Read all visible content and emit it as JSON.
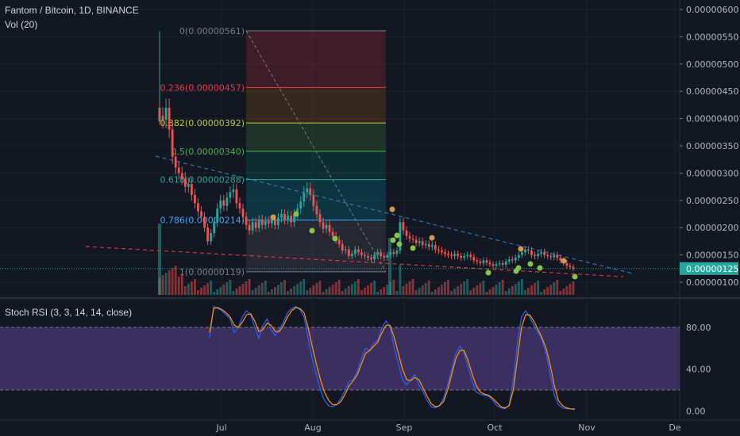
{
  "header": {
    "symbol": "Fantom / Bitcoin, 1D, BINANCE",
    "vol": "Vol (20)",
    "stoch": "Stoch RSI (3, 3, 14, 14, close)"
  },
  "colors": {
    "background": "#131722",
    "up": "#26a69a",
    "down": "#ef5350",
    "price_tag": "#26a69a",
    "trend_blue": "#2f78b5",
    "trend_red": "#d43c3c",
    "stoch_k": "#2962ff",
    "stoch_d": "#ff9800",
    "stoch_band": "#7e57c2"
  },
  "chart_data": [
    {
      "type": "candlestick",
      "title": "Fantom / Bitcoin, 1D, BINANCE",
      "x_ticks": [
        "Jul",
        "Aug",
        "Sep",
        "Oct",
        "Nov",
        "De"
      ],
      "y_ticks": [
        "0.00000600",
        "0.00000550",
        "0.00000500",
        "0.00000450",
        "0.00000400",
        "0.00000350",
        "0.00000300",
        "0.00000250",
        "0.00000200",
        "0.00000150",
        "0.00000100"
      ],
      "ylim": [
        9.5e-07,
        6.2e-06
      ],
      "last_price": "0.00000125",
      "fibonacci": [
        {
          "label": "0(0.00000561)",
          "level": 5.61e-06,
          "color": "#787b86"
        },
        {
          "label": "0.236(0.00000457)",
          "level": 4.57e-06,
          "color": "#f23645"
        },
        {
          "label": "0.382(0.00000392)",
          "level": 3.92e-06,
          "color": "#c0ca33"
        },
        {
          "label": "0.5(0.00000340)",
          "level": 3.4e-06,
          "color": "#4caf50"
        },
        {
          "label": "0.618(0.00000288)",
          "level": 2.88e-06,
          "color": "#26a69a"
        },
        {
          "label": "0.786(0.00000214)",
          "level": 2.14e-06,
          "color": "#42a5f5"
        },
        {
          "label": "1(0.00000119)",
          "level": 1.19e-06,
          "color": "#787b86"
        }
      ],
      "close_series": [
        4.05e-06,
        3.98e-06,
        4.2e-06,
        3.8e-06,
        3.3e-06,
        3.1e-06,
        3e-06,
        2.9e-06,
        2.75e-06,
        2.8e-06,
        2.6e-06,
        2.45e-06,
        2.3e-06,
        2.2e-06,
        2e-06,
        1.75e-06,
        1.9e-06,
        2.1e-06,
        2.35e-06,
        2.5e-06,
        2.4e-06,
        2.55e-06,
        2.65e-06,
        2.7e-06,
        2.45e-06,
        2.35e-06,
        2.2e-06,
        2.05e-06,
        1.95e-06,
        2.1e-06,
        2e-06,
        2.15e-06,
        2.05e-06,
        2.12e-06,
        2.08e-06,
        2.15e-06,
        2.05e-06,
        2.18e-06,
        2.25e-06,
        2.15e-06,
        2.22e-06,
        2.1e-06,
        2.25e-06,
        2.35e-06,
        2.48e-06,
        2.65e-06,
        2.72e-06,
        2.6e-06,
        2.4e-06,
        2.25e-06,
        2.1e-06,
        1.98e-06,
        2.05e-06,
        1.92e-06,
        1.85e-06,
        1.78e-06,
        1.7e-06,
        1.58e-06,
        1.6e-06,
        1.48e-06,
        1.52e-06,
        1.6e-06,
        1.55e-06,
        1.5e-06,
        1.48e-06,
        1.45e-06,
        1.42e-06,
        1.5e-06,
        1.55e-06,
        1.48e-06,
        1.45e-06,
        1.5e-06,
        1.55e-06,
        1.52e-06,
        1.58e-06,
        2.1e-06,
        1.95e-06,
        1.85e-06,
        1.8e-06,
        1.78e-06,
        1.72e-06,
        1.75e-06,
        1.68e-06,
        1.7e-06,
        1.65e-06,
        1.68e-06,
        1.6e-06,
        1.58e-06,
        1.55e-06,
        1.52e-06,
        1.5e-06,
        1.48e-06,
        1.52e-06,
        1.48e-06,
        1.45e-06,
        1.48e-06,
        1.5e-06,
        1.46e-06,
        1.4e-06,
        1.38e-06,
        1.35e-06,
        1.4e-06,
        1.36e-06,
        1.33e-06,
        1.3e-06,
        1.33e-06,
        1.35e-06,
        1.32e-06,
        1.38e-06,
        1.42e-06,
        1.4e-06,
        1.45e-06,
        1.5e-06,
        1.55e-06,
        1.6e-06,
        1.58e-06,
        1.5e-06,
        1.48e-06,
        1.52e-06,
        1.55e-06,
        1.5e-06,
        1.48e-06,
        1.46e-06,
        1.5e-06,
        1.45e-06,
        1.4e-06,
        1.35e-06,
        1.3e-06,
        1.28e-06,
        1.25e-06
      ]
    },
    {
      "type": "line",
      "title": "Stoch RSI (3, 3, 14, 14, close)",
      "y_ticks": [
        "80.00",
        "40.00",
        "0.00"
      ],
      "ylim": [
        -5,
        105
      ],
      "bands": [
        20,
        80
      ],
      "series": [
        {
          "values": [
            70,
            100,
            98,
            96,
            92,
            88,
            75,
            80,
            90,
            96,
            92,
            80,
            70,
            82,
            88,
            78,
            72,
            78,
            85,
            94,
            98,
            100,
            97,
            90,
            70,
            50,
            35,
            20,
            10,
            5,
            4,
            6,
            12,
            20,
            28,
            30,
            38,
            50,
            60,
            58,
            65,
            68,
            80,
            86,
            80,
            60,
            45,
            30,
            25,
            30,
            35,
            25,
            18,
            10,
            4,
            3,
            5,
            12,
            25,
            40,
            55,
            62,
            56,
            42,
            28,
            18,
            16,
            15,
            14,
            10,
            5,
            3,
            2,
            6,
            30,
            65,
            90,
            96,
            90,
            82,
            75,
            68,
            55,
            35,
            15,
            6,
            3,
            2,
            2,
            1
          ]
        },
        {
          "values": [
            75,
            98,
            99,
            97,
            94,
            90,
            82,
            80,
            85,
            92,
            93,
            86,
            76,
            78,
            84,
            82,
            76,
            76,
            82,
            90,
            96,
            99,
            98,
            94,
            80,
            62,
            45,
            30,
            18,
            10,
            6,
            6,
            9,
            16,
            24,
            29,
            35,
            45,
            55,
            58,
            62,
            66,
            75,
            82,
            82,
            70,
            55,
            40,
            30,
            29,
            32,
            30,
            22,
            14,
            7,
            4,
            5,
            9,
            20,
            35,
            50,
            58,
            58,
            48,
            35,
            24,
            18,
            16,
            15,
            12,
            8,
            4,
            3,
            5,
            20,
            50,
            80,
            92,
            92,
            86,
            78,
            70,
            60,
            44,
            24,
            10,
            5,
            3,
            2,
            2
          ]
        }
      ]
    }
  ]
}
